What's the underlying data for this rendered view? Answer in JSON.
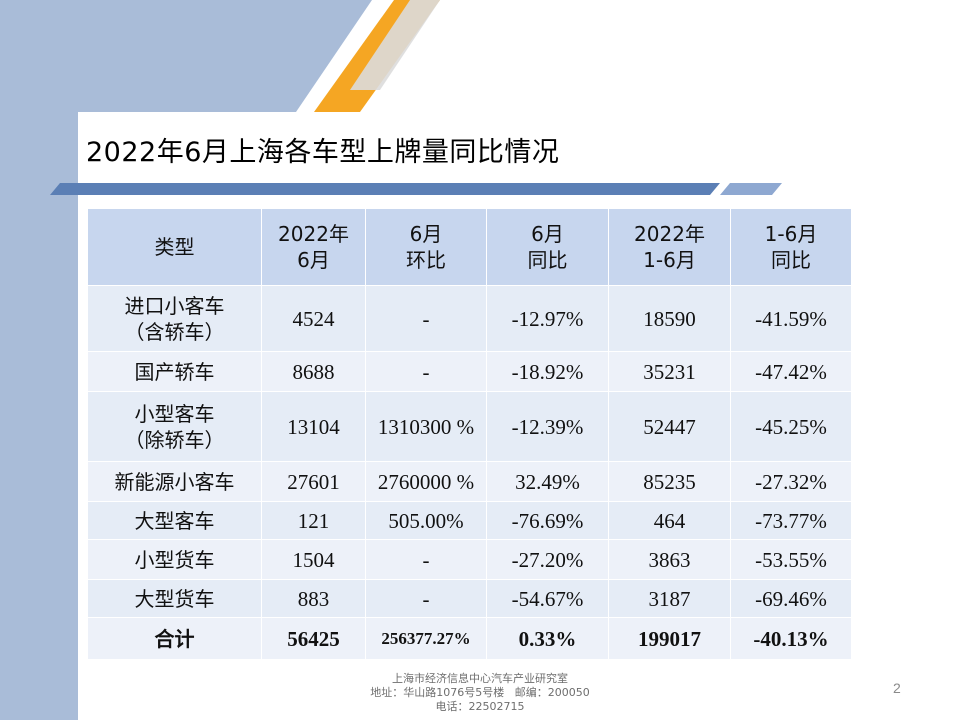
{
  "slide": {
    "title": "2022年6月上海各车型上牌量同比情况",
    "page_number": "2"
  },
  "table": {
    "headers": [
      [
        "类型"
      ],
      [
        "2022年",
        "6月"
      ],
      [
        "6月",
        "环比"
      ],
      [
        "6月",
        "同比"
      ],
      [
        "2022年",
        "1-6月"
      ],
      [
        "1-6月",
        "同比"
      ]
    ],
    "rows": [
      {
        "type": [
          "进口小客车",
          "（含轿车）"
        ],
        "jun": "4524",
        "mom": "-",
        "yoy": "-12.97%",
        "h1": "18590",
        "h1_yoy": "-41.59%"
      },
      {
        "type": [
          "国产轿车"
        ],
        "jun": "8688",
        "mom": "-",
        "yoy": "-18.92%",
        "h1": "35231",
        "h1_yoy": "-47.42%"
      },
      {
        "type": [
          "小型客车",
          "（除轿车）"
        ],
        "jun": "13104",
        "mom": "1310300 %",
        "yoy": "-12.39%",
        "h1": "52447",
        "h1_yoy": "-45.25%"
      },
      {
        "type": [
          "新能源小客车"
        ],
        "jun": "27601",
        "mom": "2760000 %",
        "yoy": "32.49%",
        "h1": "85235",
        "h1_yoy": "-27.32%"
      },
      {
        "type": [
          "大型客车"
        ],
        "jun": "121",
        "mom": "505.00%",
        "yoy": "-76.69%",
        "h1": "464",
        "h1_yoy": "-73.77%"
      },
      {
        "type": [
          "小型货车"
        ],
        "jun": "1504",
        "mom": "-",
        "yoy": "-27.20%",
        "h1": "3863",
        "h1_yoy": "-53.55%"
      },
      {
        "type": [
          "大型货车"
        ],
        "jun": "883",
        "mom": "-",
        "yoy": "-54.67%",
        "h1": "3187",
        "h1_yoy": "-69.46%"
      },
      {
        "type": [
          "合计"
        ],
        "jun": "56425",
        "mom": "256377.27%",
        "yoy": "0.33%",
        "h1": "199017",
        "h1_yoy": "-40.13%"
      }
    ]
  },
  "footer": {
    "line1": "上海市经济信息中心汽车产业研究室",
    "line2": "地址：华山路1076号5号楼   邮编：200050",
    "line3": "电话：22502715"
  },
  "colors": {
    "sidebar": "#a9bcd8",
    "stripe_orange": "#f5a623",
    "stripe_gray": "#dcdcdc",
    "underline_blue": "#5b7fb5",
    "header_fill": "#c7d6ee",
    "cell_fill": "#e5ecf6"
  }
}
